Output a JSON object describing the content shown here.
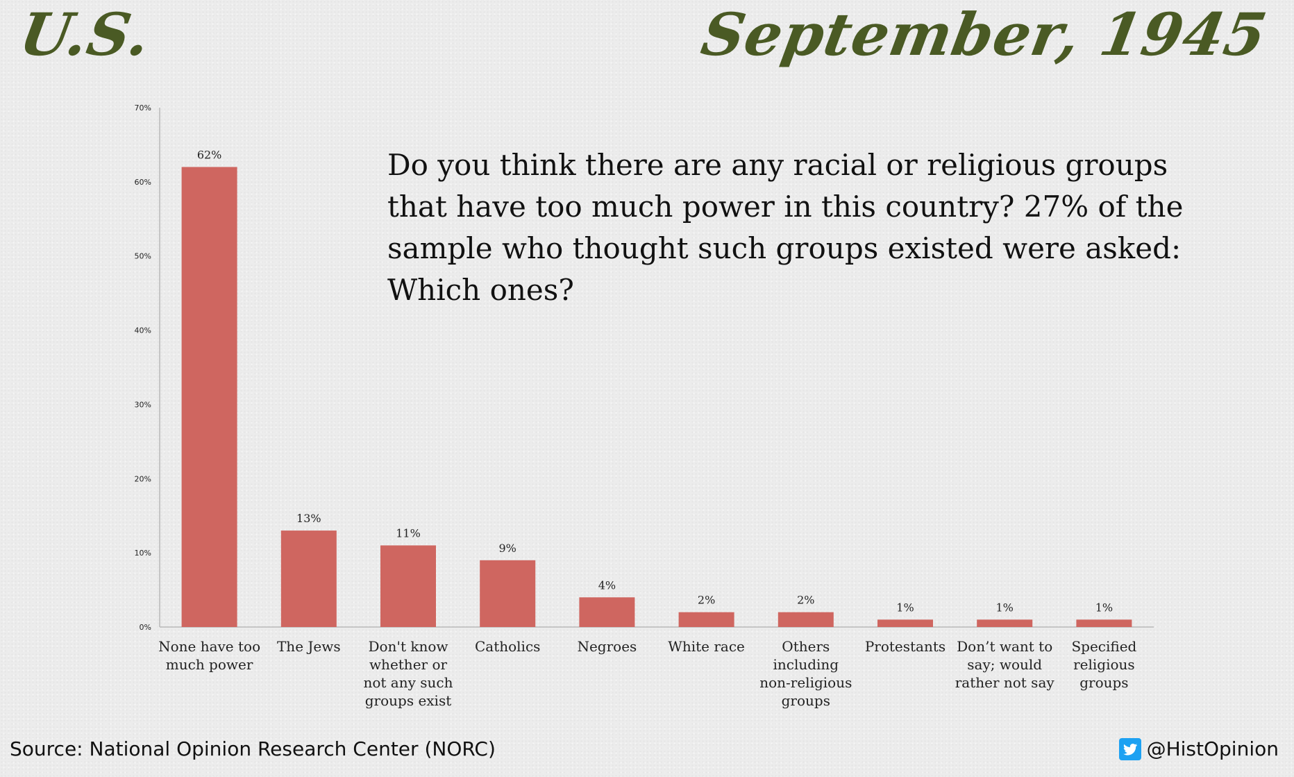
{
  "header": {
    "country": "U.S.",
    "date": "September, 1945"
  },
  "question": "Do you think there are any racial or religious groups that have too much power in this country? 27% of the sample who thought such groups existed were asked: Which ones?",
  "footer": {
    "source": "Source: National Opinion Research Center (NORC)",
    "handle": "@HistOpinion",
    "handle_icon": "twitter-icon"
  },
  "colors": {
    "bar": "#cf6660",
    "title": "#4a5a24",
    "twitter": "#1da1f2"
  },
  "chart_data": {
    "type": "bar",
    "categories": [
      [
        "None have too",
        "much power"
      ],
      [
        "The Jews"
      ],
      [
        "Don't know",
        "whether or",
        "not any such",
        "groups exist"
      ],
      [
        "Catholics"
      ],
      [
        "Negroes"
      ],
      [
        "White race"
      ],
      [
        "Others",
        "including",
        "non-religious",
        "groups"
      ],
      [
        "Protestants"
      ],
      [
        "Don’t want to",
        "say; would",
        "rather not say"
      ],
      [
        "Specified",
        "religious",
        "groups"
      ]
    ],
    "values": [
      62,
      13,
      11,
      9,
      4,
      2,
      2,
      1,
      1,
      1
    ],
    "data_labels": [
      "62%",
      "13%",
      "11%",
      "9%",
      "4%",
      "2%",
      "2%",
      "1%",
      "1%",
      "1%"
    ],
    "ylim": [
      0,
      70
    ],
    "yticks": [
      0,
      10,
      20,
      30,
      40,
      50,
      60,
      70
    ],
    "ytick_labels": [
      "0%",
      "10%",
      "20%",
      "30%",
      "40%",
      "50%",
      "60%",
      "70%"
    ],
    "grid": false,
    "legend": false
  }
}
